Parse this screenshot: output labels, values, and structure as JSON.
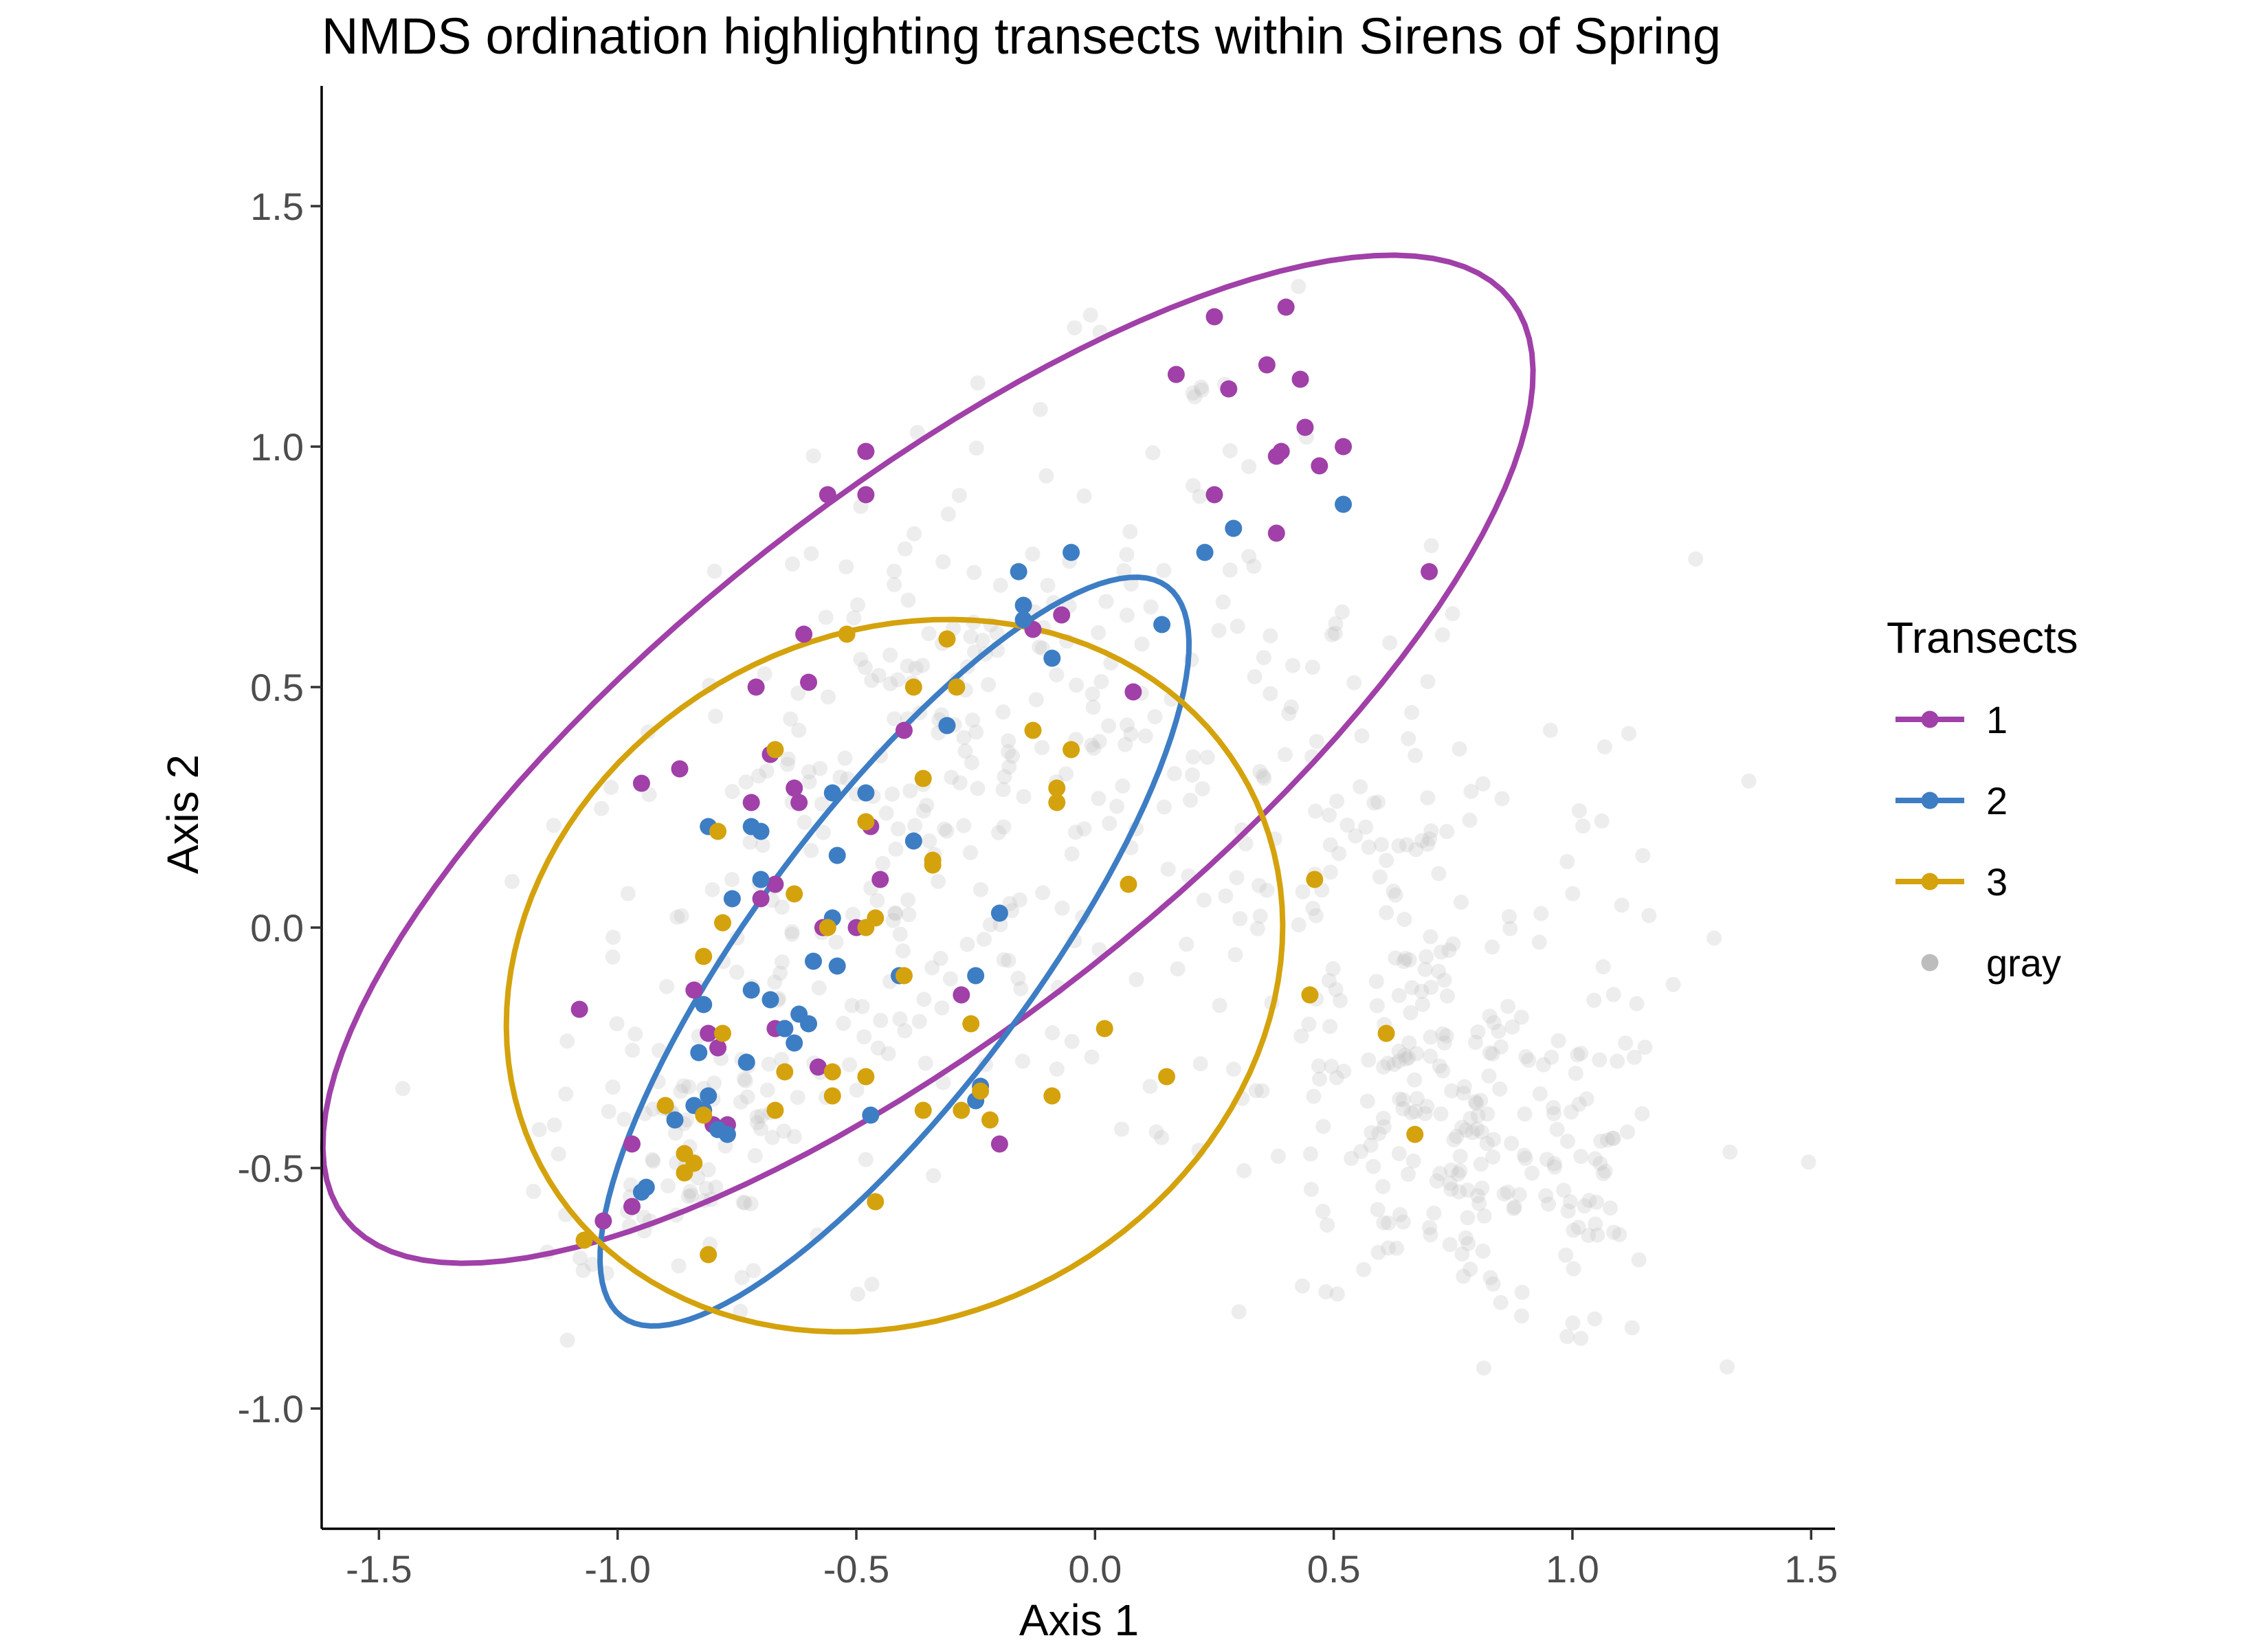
{
  "chart_data": {
    "type": "scatter",
    "title": "NMDS ordination highlighting transects within Sirens of Spring",
    "xlabel": "Axis 1",
    "ylabel": "Axis 2",
    "xlim": [
      -1.62,
      1.55
    ],
    "ylim": [
      -1.25,
      1.75
    ],
    "x_ticks": [
      -1.5,
      -1.0,
      -0.5,
      0.0,
      0.5,
      1.0,
      1.5
    ],
    "x_tick_labels": [
      "-1.5",
      "-1.0",
      "-0.5",
      "0.0",
      "0.5",
      "1.0",
      "1.5"
    ],
    "y_ticks": [
      -1.0,
      -0.5,
      0.0,
      0.5,
      1.0,
      1.5
    ],
    "y_tick_labels": [
      "-1.0",
      "-0.5",
      "0.0",
      "0.5",
      "1.0",
      "1.5"
    ],
    "grid": false,
    "legend": {
      "title": "Transects",
      "position": "right"
    },
    "series": [
      {
        "name": "1",
        "color": "#a040a8",
        "ellipse": {
          "center": [
            -0.35,
            0.35
          ],
          "semi_major": 1.55,
          "semi_minor": 0.55,
          "angle_deg": 38
        },
        "points": [
          [
            0.25,
            1.27
          ],
          [
            0.36,
            1.17
          ],
          [
            0.4,
            1.29
          ],
          [
            0.43,
            1.14
          ],
          [
            0.17,
            1.15
          ],
          [
            0.28,
            1.12
          ],
          [
            0.44,
            1.04
          ],
          [
            0.38,
            0.98
          ],
          [
            0.39,
            0.99
          ],
          [
            0.47,
            0.96
          ],
          [
            0.52,
            1.0
          ],
          [
            0.25,
            0.9
          ],
          [
            0.38,
            0.82
          ],
          [
            0.7,
            0.74
          ],
          [
            -0.48,
            0.99
          ],
          [
            -0.56,
            0.9
          ],
          [
            -0.48,
            0.9
          ],
          [
            -0.61,
            0.61
          ],
          [
            -0.6,
            0.51
          ],
          [
            -0.71,
            0.5
          ],
          [
            -0.68,
            0.36
          ],
          [
            -0.4,
            0.41
          ],
          [
            -0.13,
            0.62
          ],
          [
            -0.07,
            0.65
          ],
          [
            0.08,
            0.49
          ],
          [
            -0.95,
            0.3
          ],
          [
            -0.87,
            0.33
          ],
          [
            -0.72,
            0.26
          ],
          [
            -0.63,
            0.29
          ],
          [
            -0.62,
            0.26
          ],
          [
            -0.47,
            0.21
          ],
          [
            -0.45,
            0.1
          ],
          [
            -0.7,
            0.06
          ],
          [
            -0.67,
            0.09
          ],
          [
            -0.57,
            0.0
          ],
          [
            -0.5,
            0.0
          ],
          [
            -0.28,
            -0.14
          ],
          [
            -0.84,
            -0.13
          ],
          [
            -0.81,
            -0.22
          ],
          [
            -0.79,
            -0.25
          ],
          [
            -0.67,
            -0.21
          ],
          [
            -0.65,
            -0.21
          ],
          [
            -0.58,
            -0.29
          ],
          [
            -1.08,
            -0.17
          ],
          [
            -0.97,
            -0.45
          ],
          [
            -0.8,
            -0.41
          ],
          [
            -0.77,
            -0.41
          ],
          [
            -0.2,
            -0.45
          ],
          [
            -1.03,
            -0.61
          ],
          [
            -0.97,
            -0.58
          ]
        ]
      },
      {
        "name": "2",
        "color": "#3d7dc4",
        "ellipse": {
          "center": [
            -0.42,
            -0.05
          ],
          "semi_major": 0.95,
          "semi_minor": 0.29,
          "angle_deg": 53
        },
        "points": [
          [
            -0.16,
            0.74
          ],
          [
            -0.05,
            0.78
          ],
          [
            -0.15,
            0.67
          ],
          [
            -0.15,
            0.64
          ],
          [
            -0.09,
            0.56
          ],
          [
            0.14,
            0.63
          ],
          [
            0.23,
            0.78
          ],
          [
            0.29,
            0.83
          ],
          [
            0.52,
            0.88
          ],
          [
            -0.31,
            0.42
          ],
          [
            -0.55,
            0.28
          ],
          [
            -0.48,
            0.28
          ],
          [
            -0.81,
            0.21
          ],
          [
            -0.72,
            0.21
          ],
          [
            -0.7,
            0.2
          ],
          [
            -0.54,
            0.15
          ],
          [
            -0.38,
            0.18
          ],
          [
            -0.7,
            0.1
          ],
          [
            -0.76,
            0.06
          ],
          [
            -0.55,
            0.02
          ],
          [
            -0.59,
            -0.07
          ],
          [
            -0.54,
            -0.08
          ],
          [
            -0.41,
            -0.1
          ],
          [
            -0.25,
            -0.1
          ],
          [
            -0.2,
            0.03
          ],
          [
            -0.82,
            -0.16
          ],
          [
            -0.72,
            -0.13
          ],
          [
            -0.68,
            -0.15
          ],
          [
            -0.65,
            -0.21
          ],
          [
            -0.63,
            -0.24
          ],
          [
            -0.6,
            -0.2
          ],
          [
            -0.62,
            -0.18
          ],
          [
            -0.83,
            -0.26
          ],
          [
            -0.73,
            -0.28
          ],
          [
            -0.84,
            -0.37
          ],
          [
            -0.81,
            -0.35
          ],
          [
            -0.82,
            -0.38
          ],
          [
            -0.88,
            -0.4
          ],
          [
            -0.79,
            -0.42
          ],
          [
            -0.77,
            -0.43
          ],
          [
            -0.47,
            -0.39
          ],
          [
            -0.24,
            -0.33
          ],
          [
            -0.25,
            -0.36
          ],
          [
            -0.94,
            -0.54
          ],
          [
            -0.95,
            -0.55
          ]
        ]
      },
      {
        "name": "3",
        "color": "#d4a20c",
        "ellipse": {
          "center": [
            -0.42,
            -0.1
          ],
          "semi_major": 0.84,
          "semi_minor": 0.71,
          "angle_deg": 28
        },
        "points": [
          [
            -0.52,
            0.61
          ],
          [
            -0.31,
            0.6
          ],
          [
            -0.38,
            0.5
          ],
          [
            -0.29,
            0.5
          ],
          [
            -0.13,
            0.41
          ],
          [
            -0.05,
            0.37
          ],
          [
            -0.67,
            0.37
          ],
          [
            -0.36,
            0.31
          ],
          [
            -0.08,
            0.29
          ],
          [
            -0.08,
            0.26
          ],
          [
            -0.79,
            0.2
          ],
          [
            -0.48,
            0.22
          ],
          [
            -0.34,
            0.14
          ],
          [
            -0.34,
            0.13
          ],
          [
            -0.46,
            0.02
          ],
          [
            -0.48,
            0.0
          ],
          [
            -0.56,
            0.0
          ],
          [
            -0.63,
            0.07
          ],
          [
            -0.78,
            0.01
          ],
          [
            -0.82,
            -0.06
          ],
          [
            0.07,
            0.09
          ],
          [
            0.46,
            0.1
          ],
          [
            -0.4,
            -0.1
          ],
          [
            -0.26,
            -0.2
          ],
          [
            -0.65,
            -0.3
          ],
          [
            -0.55,
            -0.3
          ],
          [
            -0.55,
            -0.35
          ],
          [
            -0.48,
            -0.31
          ],
          [
            -0.36,
            -0.38
          ],
          [
            -0.28,
            -0.38
          ],
          [
            -0.22,
            -0.4
          ],
          [
            -0.24,
            -0.34
          ],
          [
            -0.09,
            -0.35
          ],
          [
            0.02,
            -0.21
          ],
          [
            0.15,
            -0.31
          ],
          [
            0.45,
            -0.14
          ],
          [
            0.61,
            -0.22
          ],
          [
            0.67,
            -0.43
          ],
          [
            -0.78,
            -0.22
          ],
          [
            -0.67,
            -0.38
          ],
          [
            -0.9,
            -0.37
          ],
          [
            -0.82,
            -0.39
          ],
          [
            -0.86,
            -0.47
          ],
          [
            -0.86,
            -0.51
          ],
          [
            -0.84,
            -0.49
          ],
          [
            -0.46,
            -0.57
          ],
          [
            -1.07,
            -0.65
          ],
          [
            -0.81,
            -0.68
          ]
        ]
      },
      {
        "name": "gray",
        "color": "#bdbdbd",
        "ellipse": null,
        "points": []
      }
    ]
  }
}
